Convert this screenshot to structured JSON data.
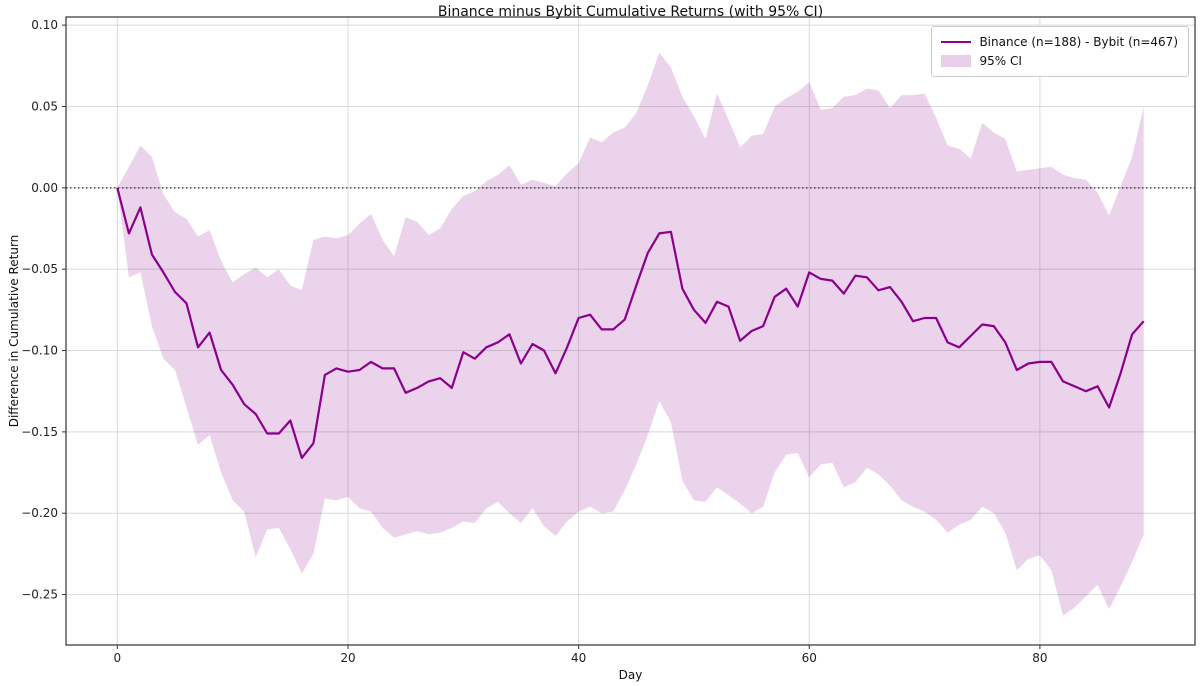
{
  "figure": {
    "title": "Binance minus Bybit Cumulative Returns (with 95% CI)",
    "xlabel": "Day",
    "ylabel": "Difference in Cumulative Return"
  },
  "legend": {
    "series_label": "Binance (n=188) - Bybit (n=467)",
    "ci_label": "95% CI"
  },
  "colors": {
    "line": "#8b008b",
    "band_fill": "rgba(139,0,139,0.17)",
    "grid": "#d9d9d9",
    "spine": "#333333",
    "zero_line": "#000000",
    "tick_text": "#222222"
  },
  "chart_data": {
    "type": "line",
    "title": "Binance minus Bybit Cumulative Returns (with 95% CI)",
    "xlabel": "Day",
    "ylabel": "Difference in Cumulative Return",
    "legend_position": "upper right",
    "grid": true,
    "zero_reference_line": 0.0,
    "xlim": [
      -4.45,
      93.45
    ],
    "ylim": [
      -0.281,
      0.105
    ],
    "x_ticks": {
      "values": [
        0,
        20,
        40,
        60,
        80
      ],
      "labels": [
        "0",
        "20",
        "40",
        "60",
        "80"
      ]
    },
    "y_ticks": {
      "values": [
        0.1,
        0.05,
        0.0,
        -0.05,
        -0.1,
        -0.15,
        -0.2,
        -0.25
      ],
      "labels": [
        "0.10",
        "0.05",
        "0.00",
        "−0.05",
        "−0.10",
        "−0.15",
        "−0.20",
        "−0.25"
      ]
    },
    "x_description": "Day index 0..89 (one point per day)",
    "series": [
      {
        "name": "Binance (n=188) - Bybit (n=467)",
        "role": "mean-difference",
        "values": [
          0.0,
          -0.028,
          -0.012,
          -0.041,
          -0.052,
          -0.064,
          -0.071,
          -0.098,
          -0.089,
          -0.112,
          -0.121,
          -0.133,
          -0.139,
          -0.151,
          -0.151,
          -0.143,
          -0.166,
          -0.157,
          -0.115,
          -0.111,
          -0.113,
          -0.112,
          -0.107,
          -0.111,
          -0.111,
          -0.126,
          -0.123,
          -0.119,
          -0.117,
          -0.123,
          -0.101,
          -0.105,
          -0.098,
          -0.095,
          -0.09,
          -0.108,
          -0.096,
          -0.1,
          -0.114,
          -0.098,
          -0.08,
          -0.078,
          -0.087,
          -0.087,
          -0.081,
          -0.06,
          -0.04,
          -0.028,
          -0.027,
          -0.062,
          -0.075,
          -0.083,
          -0.07,
          -0.073,
          -0.094,
          -0.088,
          -0.085,
          -0.067,
          -0.062,
          -0.073,
          -0.052,
          -0.056,
          -0.057,
          -0.065,
          -0.054,
          -0.055,
          -0.063,
          -0.061,
          -0.07,
          -0.082,
          -0.08,
          -0.08,
          -0.095,
          -0.098,
          -0.091,
          -0.084,
          -0.085,
          -0.095,
          -0.112,
          -0.108,
          -0.107,
          -0.107,
          -0.119,
          -0.122,
          -0.125,
          -0.122,
          -0.135,
          -0.114,
          -0.09,
          -0.082
        ]
      },
      {
        "name": "95% CI upper",
        "role": "ci-upper",
        "values": [
          0.0,
          0.013,
          0.026,
          0.019,
          -0.004,
          -0.015,
          -0.019,
          -0.03,
          -0.026,
          -0.045,
          -0.058,
          -0.053,
          -0.049,
          -0.055,
          -0.05,
          -0.06,
          -0.063,
          -0.032,
          -0.03,
          -0.031,
          -0.029,
          -0.022,
          -0.016,
          -0.032,
          -0.042,
          -0.018,
          -0.021,
          -0.029,
          -0.025,
          -0.013,
          -0.005,
          -0.002,
          0.004,
          0.008,
          0.014,
          0.002,
          0.005,
          0.003,
          0.001,
          0.009,
          0.015,
          0.031,
          0.028,
          0.034,
          0.037,
          0.046,
          0.063,
          0.083,
          0.074,
          0.056,
          0.044,
          0.03,
          0.058,
          0.042,
          0.025,
          0.032,
          0.033,
          0.05,
          0.055,
          0.059,
          0.065,
          0.048,
          0.049,
          0.056,
          0.057,
          0.061,
          0.06,
          0.049,
          0.057,
          0.057,
          0.058,
          0.043,
          0.026,
          0.024,
          0.018,
          0.04,
          0.034,
          0.03,
          0.01,
          0.011,
          0.012,
          0.013,
          0.008,
          0.006,
          0.005,
          -0.003,
          -0.017,
          0.001,
          0.019,
          0.05
        ]
      },
      {
        "name": "95% CI lower",
        "role": "ci-lower",
        "values": [
          0.0,
          -0.055,
          -0.052,
          -0.085,
          -0.105,
          -0.112,
          -0.135,
          -0.158,
          -0.152,
          -0.175,
          -0.192,
          -0.199,
          -0.227,
          -0.21,
          -0.209,
          -0.222,
          -0.237,
          -0.225,
          -0.191,
          -0.192,
          -0.19,
          -0.197,
          -0.199,
          -0.209,
          -0.215,
          -0.213,
          -0.211,
          -0.213,
          -0.212,
          -0.209,
          -0.205,
          -0.206,
          -0.197,
          -0.193,
          -0.2,
          -0.206,
          -0.197,
          -0.208,
          -0.214,
          -0.205,
          -0.199,
          -0.196,
          -0.2,
          -0.199,
          -0.186,
          -0.17,
          -0.152,
          -0.131,
          -0.144,
          -0.18,
          -0.192,
          -0.193,
          -0.184,
          -0.189,
          -0.194,
          -0.2,
          -0.196,
          -0.175,
          -0.164,
          -0.163,
          -0.178,
          -0.17,
          -0.169,
          -0.184,
          -0.181,
          -0.172,
          -0.176,
          -0.183,
          -0.192,
          -0.196,
          -0.199,
          -0.204,
          -0.212,
          -0.207,
          -0.204,
          -0.196,
          -0.2,
          -0.212,
          -0.235,
          -0.228,
          -0.226,
          -0.235,
          -0.263,
          -0.258,
          -0.251,
          -0.244,
          -0.259,
          -0.245,
          -0.23,
          -0.213
        ]
      }
    ]
  }
}
